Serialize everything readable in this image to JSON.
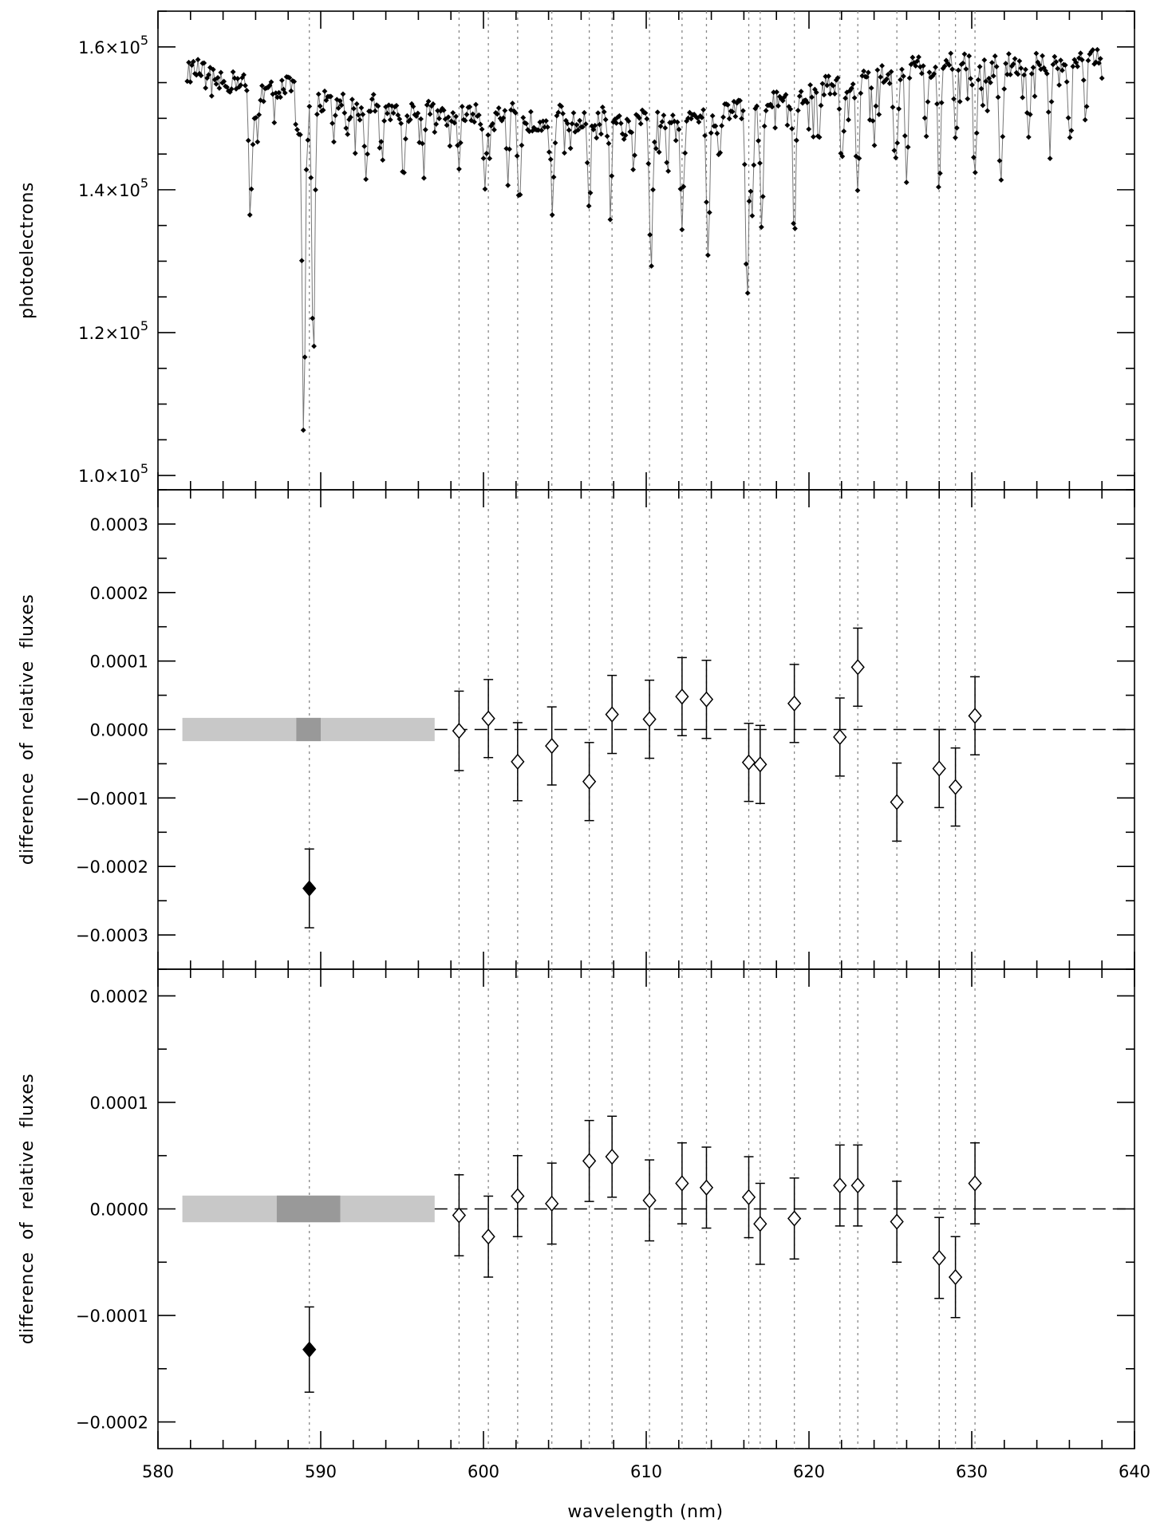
{
  "figure": {
    "xlabel": "wavelength (nm)",
    "xticks": [
      "580",
      "590",
      "600",
      "610",
      "620",
      "630",
      "640"
    ]
  },
  "chart_data": [
    {
      "type": "line",
      "panel": "top",
      "ylabel": "photoelectrons",
      "ylim": [
        98000,
        165000
      ],
      "xlim": [
        580,
        640
      ],
      "yticks": [
        {
          "value": 100000,
          "mant": "1.0",
          "exp": "5"
        },
        {
          "value": 120000,
          "mant": "1.2",
          "exp": "5"
        },
        {
          "value": 140000,
          "mant": "1.4",
          "exp": "5"
        },
        {
          "value": 160000,
          "mant": "1.6",
          "exp": "5"
        }
      ],
      "times_sign": "×10",
      "line_color": "#777777",
      "marker_color": "#000000",
      "spectrum": {
        "x_start": 581.8,
        "x_end": 638.0,
        "n_points": 600,
        "continuum": [
          [
            581.8,
            156500
          ],
          [
            586,
            154500
          ],
          [
            588,
            154000
          ],
          [
            590,
            152500
          ],
          [
            594,
            151500
          ],
          [
            598,
            150500
          ],
          [
            604,
            150000
          ],
          [
            610,
            149500
          ],
          [
            614,
            150500
          ],
          [
            618,
            152000
          ],
          [
            622,
            155000
          ],
          [
            626,
            157000
          ],
          [
            630,
            157500
          ],
          [
            634,
            157500
          ],
          [
            638,
            158000
          ]
        ],
        "absorption_lines": [
          [
            585.7,
            139000,
            0.18
          ],
          [
            586.1,
            147500,
            0.12
          ],
          [
            588.95,
            104500,
            0.13
          ],
          [
            589.55,
            117000,
            0.13
          ],
          [
            588.6,
            146000,
            0.12
          ],
          [
            590.8,
            145000,
            0.12
          ],
          [
            591.6,
            147000,
            0.12
          ],
          [
            592.8,
            141000,
            0.12
          ],
          [
            593.8,
            144000,
            0.12
          ],
          [
            595.1,
            141500,
            0.12
          ],
          [
            596.3,
            145000,
            0.12
          ],
          [
            598.5,
            143000,
            0.12
          ],
          [
            600.1,
            142000,
            0.13
          ],
          [
            601.5,
            139500,
            0.12
          ],
          [
            602.2,
            137000,
            0.15
          ],
          [
            604.2,
            141500,
            0.13
          ],
          [
            606.5,
            138000,
            0.13
          ],
          [
            607.8,
            139500,
            0.12
          ],
          [
            609.2,
            144000,
            0.12
          ],
          [
            610.3,
            129000,
            0.14
          ],
          [
            611.3,
            143500,
            0.12
          ],
          [
            612.2,
            134000,
            0.13
          ],
          [
            613.8,
            132500,
            0.14
          ],
          [
            614.5,
            143500,
            0.12
          ],
          [
            616.2,
            127500,
            0.15
          ],
          [
            616.5,
            138000,
            0.12
          ],
          [
            617.1,
            135500,
            0.13
          ],
          [
            619.1,
            134000,
            0.13
          ],
          [
            620.6,
            146000,
            0.12
          ],
          [
            622.0,
            144000,
            0.12
          ],
          [
            623.0,
            138500,
            0.14
          ],
          [
            624.0,
            146000,
            0.12
          ],
          [
            625.3,
            144000,
            0.13
          ],
          [
            626.0,
            141500,
            0.14
          ],
          [
            627.2,
            147500,
            0.12
          ],
          [
            628.0,
            140500,
            0.13
          ],
          [
            629.0,
            146000,
            0.12
          ],
          [
            630.2,
            143500,
            0.13
          ],
          [
            631.8,
            142000,
            0.15
          ],
          [
            633.5,
            147000,
            0.12
          ],
          [
            634.8,
            146500,
            0.12
          ],
          [
            636.0,
            148000,
            0.12
          ],
          [
            637.0,
            150000,
            0.12
          ]
        ]
      }
    },
    {
      "type": "scatter",
      "panel": "middle",
      "ylabel": "difference of relative fluxes",
      "ylim": [
        -0.00035,
        0.00035
      ],
      "xlim": [
        580,
        640
      ],
      "yticks": [
        {
          "value": 0.0003,
          "label": "0.0003"
        },
        {
          "value": 0.0002,
          "label": "0.0002"
        },
        {
          "value": 0.0001,
          "label": "0.0001"
        },
        {
          "value": 0.0,
          "label": "0.0000"
        },
        {
          "value": -0.0001,
          "label": "−0.0001"
        },
        {
          "value": -0.0002,
          "label": "−0.0002"
        },
        {
          "value": -0.0003,
          "label": "−0.0003"
        }
      ],
      "band": {
        "x0": 581.5,
        "x1": 597.0,
        "y_half": 1.7e-05,
        "inner_x0": 588.5,
        "inner_x1": 590.0,
        "color": "#c8c8c8",
        "inner_color": "#999999"
      },
      "points": [
        {
          "x": 589.3,
          "y": -0.000232,
          "err": 5.75e-05,
          "filled": true
        },
        {
          "x": 598.5,
          "y": -2e-06,
          "err": 5.8e-05
        },
        {
          "x": 600.3,
          "y": 1.6e-05,
          "err": 5.7e-05
        },
        {
          "x": 602.1,
          "y": -4.7e-05,
          "err": 5.7e-05
        },
        {
          "x": 604.2,
          "y": -2.4e-05,
          "err": 5.7e-05
        },
        {
          "x": 606.5,
          "y": -7.6e-05,
          "err": 5.7e-05
        },
        {
          "x": 607.9,
          "y": 2.2e-05,
          "err": 5.7e-05
        },
        {
          "x": 610.2,
          "y": 1.5e-05,
          "err": 5.7e-05
        },
        {
          "x": 612.2,
          "y": 4.8e-05,
          "err": 5.7e-05
        },
        {
          "x": 613.7,
          "y": 4.4e-05,
          "err": 5.7e-05
        },
        {
          "x": 616.3,
          "y": -4.8e-05,
          "err": 5.7e-05
        },
        {
          "x": 617.0,
          "y": -5.1e-05,
          "err": 5.7e-05
        },
        {
          "x": 619.1,
          "y": 3.8e-05,
          "err": 5.7e-05
        },
        {
          "x": 621.9,
          "y": -1.1e-05,
          "err": 5.7e-05
        },
        {
          "x": 623.0,
          "y": 9.1e-05,
          "err": 5.7e-05
        },
        {
          "x": 625.4,
          "y": -0.000106,
          "err": 5.7e-05
        },
        {
          "x": 628.0,
          "y": -5.7e-05,
          "err": 5.7e-05
        },
        {
          "x": 629.0,
          "y": -8.4e-05,
          "err": 5.7e-05
        },
        {
          "x": 630.2,
          "y": 2e-05,
          "err": 5.7e-05
        }
      ]
    },
    {
      "type": "scatter",
      "panel": "bottom",
      "ylabel": "difference of relative fluxes",
      "ylim": [
        -0.000225,
        0.000225
      ],
      "xlim": [
        580,
        640
      ],
      "yticks": [
        {
          "value": 0.0002,
          "label": "0.0002"
        },
        {
          "value": 0.0001,
          "label": "0.0001"
        },
        {
          "value": 0.0,
          "label": "0.0000"
        },
        {
          "value": -0.0001,
          "label": "−0.0001"
        },
        {
          "value": -0.0002,
          "label": "−0.0002"
        }
      ],
      "band": {
        "x0": 581.5,
        "x1": 597.0,
        "y_half": 1.25e-05,
        "inner_x0": 587.3,
        "inner_x1": 591.2,
        "color": "#c8c8c8",
        "inner_color": "#999999"
      },
      "points": [
        {
          "x": 589.3,
          "y": -0.000132,
          "err": 4e-05,
          "filled": true
        },
        {
          "x": 598.5,
          "y": -6e-06,
          "err": 3.8e-05
        },
        {
          "x": 600.3,
          "y": -2.6e-05,
          "err": 3.8e-05
        },
        {
          "x": 602.1,
          "y": 1.2e-05,
          "err": 3.8e-05
        },
        {
          "x": 604.2,
          "y": 5e-06,
          "err": 3.8e-05
        },
        {
          "x": 606.5,
          "y": 4.5e-05,
          "err": 3.8e-05
        },
        {
          "x": 607.9,
          "y": 4.9e-05,
          "err": 3.8e-05
        },
        {
          "x": 610.2,
          "y": 8e-06,
          "err": 3.8e-05
        },
        {
          "x": 612.2,
          "y": 2.4e-05,
          "err": 3.8e-05
        },
        {
          "x": 613.7,
          "y": 2e-05,
          "err": 3.8e-05
        },
        {
          "x": 616.3,
          "y": 1.1e-05,
          "err": 3.8e-05
        },
        {
          "x": 617.0,
          "y": -1.4e-05,
          "err": 3.8e-05
        },
        {
          "x": 619.1,
          "y": -9e-06,
          "err": 3.8e-05
        },
        {
          "x": 621.9,
          "y": 2.2e-05,
          "err": 3.8e-05
        },
        {
          "x": 623.0,
          "y": 2.2e-05,
          "err": 3.8e-05
        },
        {
          "x": 625.4,
          "y": -1.2e-05,
          "err": 3.8e-05
        },
        {
          "x": 628.0,
          "y": -4.6e-05,
          "err": 3.8e-05
        },
        {
          "x": 629.0,
          "y": -6.4e-05,
          "err": 3.8e-05
        },
        {
          "x": 630.2,
          "y": 2.4e-05,
          "err": 3.8e-05
        }
      ]
    }
  ],
  "vertical_lines_nm": [
    589.3,
    598.5,
    600.3,
    602.1,
    604.2,
    606.5,
    607.9,
    610.2,
    612.2,
    613.7,
    616.3,
    617.0,
    619.1,
    621.9,
    623.0,
    625.4,
    628.0,
    629.0,
    630.2
  ]
}
